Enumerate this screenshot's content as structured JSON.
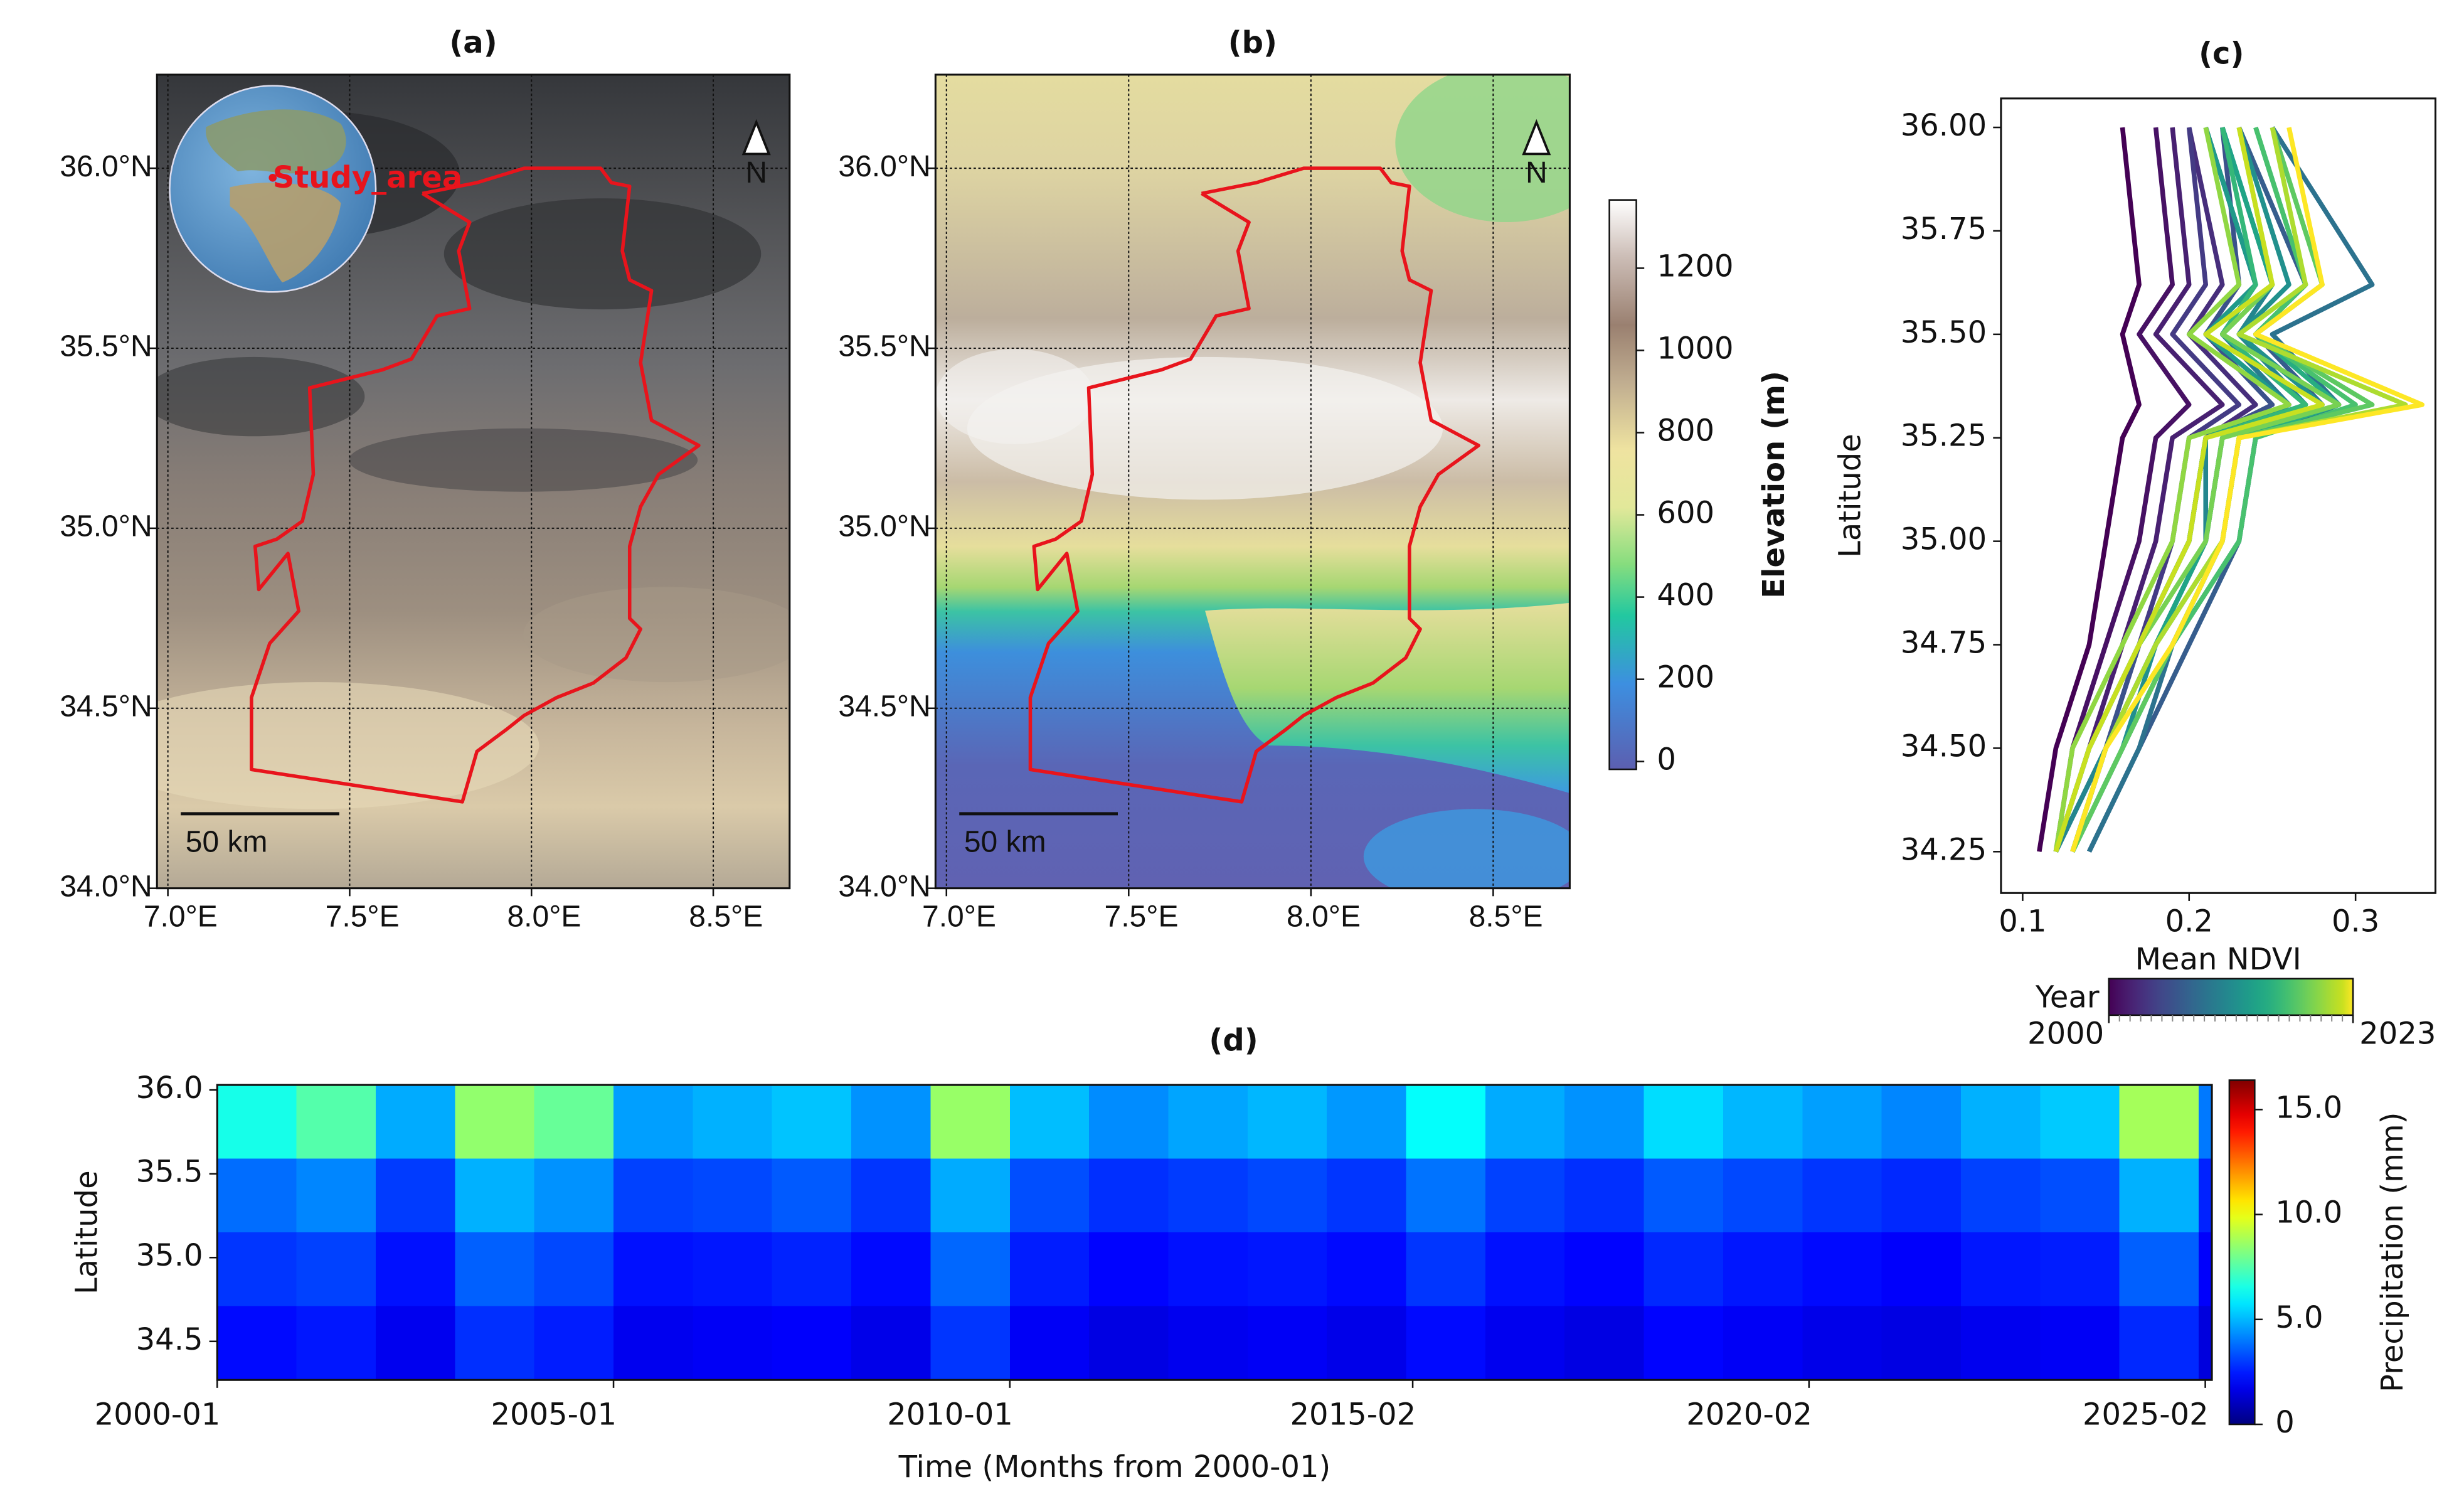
{
  "chart_data": [
    {
      "type": "map",
      "title": "(a)",
      "xlim": [
        6.97,
        8.71
      ],
      "ylim": [
        34.0,
        36.26
      ],
      "xticks": [
        {
          "value": 7.0,
          "label": "7.0°E"
        },
        {
          "value": 7.5,
          "label": "7.5°E"
        },
        {
          "value": 8.0,
          "label": "8.0°E"
        },
        {
          "value": 8.5,
          "label": "8.5°E"
        }
      ],
      "yticks": [
        {
          "value": 34.0,
          "label": "34.0°N"
        },
        {
          "value": 34.5,
          "label": "34.5°N"
        },
        {
          "value": 35.0,
          "label": "35.0°N"
        },
        {
          "value": 35.5,
          "label": "35.5°N"
        },
        {
          "value": 36.0,
          "label": "36.0°N"
        }
      ],
      "boundary": {
        "lon": [
          7.7,
          7.85,
          7.98,
          8.19,
          8.22,
          8.27,
          8.25,
          8.27,
          8.33,
          8.3,
          8.33,
          8.46,
          8.35,
          8.3,
          8.27,
          8.27,
          8.3,
          8.26,
          8.17,
          8.07,
          7.98,
          7.93,
          7.85,
          7.81,
          7.23,
          7.23,
          7.28,
          7.36,
          7.33,
          7.25,
          7.24,
          7.3,
          7.37,
          7.4,
          7.39,
          7.59,
          7.67,
          7.74,
          7.83,
          7.8,
          7.83,
          7.7
        ],
        "lat": [
          35.93,
          35.96,
          36.0,
          36.0,
          35.96,
          35.95,
          35.77,
          35.69,
          35.66,
          35.46,
          35.3,
          35.23,
          35.15,
          35.06,
          34.95,
          34.75,
          34.72,
          34.64,
          34.57,
          34.53,
          34.48,
          34.44,
          34.38,
          34.24,
          34.33,
          34.53,
          34.68,
          34.77,
          34.93,
          34.83,
          34.95,
          34.97,
          35.02,
          35.15,
          35.39,
          35.44,
          35.47,
          35.59,
          35.61,
          35.77,
          35.85,
          35.93
        ]
      },
      "boundary_color": "#e8141c",
      "scale_label": "50 km",
      "north_label": "N",
      "inset_label": "Study_area"
    },
    {
      "type": "map",
      "title": "(b)",
      "xlim": [
        6.97,
        8.71
      ],
      "ylim": [
        34.0,
        36.26
      ],
      "xticks": [
        {
          "value": 7.0,
          "label": "7.0°E"
        },
        {
          "value": 7.5,
          "label": "7.5°E"
        },
        {
          "value": 8.0,
          "label": "8.0°E"
        },
        {
          "value": 8.5,
          "label": "8.5°E"
        }
      ],
      "yticks": [
        {
          "value": 34.0,
          "label": "34.0°N"
        },
        {
          "value": 34.5,
          "label": "34.5°N"
        },
        {
          "value": 35.0,
          "label": "35.0°N"
        },
        {
          "value": 35.5,
          "label": "35.5°N"
        },
        {
          "value": 36.0,
          "label": "36.0°N"
        }
      ],
      "boundary": {
        "lon": [
          7.7,
          7.85,
          7.98,
          8.19,
          8.22,
          8.27,
          8.25,
          8.27,
          8.33,
          8.3,
          8.33,
          8.46,
          8.35,
          8.3,
          8.27,
          8.27,
          8.3,
          8.26,
          8.17,
          8.07,
          7.98,
          7.93,
          7.85,
          7.81,
          7.23,
          7.23,
          7.28,
          7.36,
          7.33,
          7.25,
          7.24,
          7.3,
          7.37,
          7.4,
          7.39,
          7.59,
          7.67,
          7.74,
          7.83,
          7.8,
          7.83,
          7.7
        ],
        "lat": [
          35.93,
          35.96,
          36.0,
          36.0,
          35.96,
          35.95,
          35.77,
          35.69,
          35.66,
          35.46,
          35.3,
          35.23,
          35.15,
          35.06,
          34.95,
          34.75,
          34.72,
          34.64,
          34.57,
          34.53,
          34.48,
          34.44,
          34.38,
          34.24,
          34.33,
          34.53,
          34.68,
          34.77,
          34.93,
          34.83,
          34.95,
          34.97,
          35.02,
          35.15,
          35.39,
          35.44,
          35.47,
          35.59,
          35.61,
          35.77,
          35.85,
          35.93
        ]
      },
      "boundary_color": "#e8141c",
      "scale_label": "50 km",
      "north_label": "N",
      "colorbar": {
        "label": "Elevation (m)",
        "lim": [
          -19,
          1366
        ],
        "ticks": [
          0,
          200,
          400,
          600,
          800,
          1000,
          1200
        ]
      }
    },
    {
      "type": "line",
      "title": "(c)",
      "xlabel": "Mean NDVI",
      "ylabel": "Latitude",
      "xlim": [
        0.087,
        0.348
      ],
      "ylim": [
        34.15,
        36.07
      ],
      "xticks": [
        0.1,
        0.2,
        0.3
      ],
      "yticks": [
        {
          "value": 34.25,
          "label": "34.25"
        },
        {
          "value": 34.5,
          "label": "34.50"
        },
        {
          "value": 34.75,
          "label": "34.75"
        },
        {
          "value": 35.0,
          "label": "35.00"
        },
        {
          "value": 35.25,
          "label": "35.25"
        },
        {
          "value": 35.5,
          "label": "35.50"
        },
        {
          "value": 35.75,
          "label": "35.75"
        },
        {
          "value": 36.0,
          "label": "36.00"
        }
      ],
      "y": [
        34.25,
        34.5,
        34.75,
        35.0,
        35.25,
        35.33,
        35.5,
        35.62,
        36.0
      ],
      "series": [
        {
          "color": "#440154",
          "values": [
            0.11,
            0.12,
            0.14,
            0.15,
            0.16,
            0.17,
            0.16,
            0.17,
            0.16
          ]
        },
        {
          "color": "#471164",
          "values": [
            0.12,
            0.13,
            0.15,
            0.17,
            0.18,
            0.2,
            0.17,
            0.19,
            0.18
          ]
        },
        {
          "color": "#482071",
          "values": [
            0.12,
            0.14,
            0.16,
            0.18,
            0.19,
            0.22,
            0.18,
            0.2,
            0.19
          ]
        },
        {
          "color": "#472e7c",
          "values": [
            0.13,
            0.15,
            0.17,
            0.2,
            0.21,
            0.24,
            0.2,
            0.22,
            0.2
          ]
        },
        {
          "color": "#443b84",
          "values": [
            0.12,
            0.14,
            0.17,
            0.19,
            0.2,
            0.23,
            0.19,
            0.21,
            0.2
          ]
        },
        {
          "color": "#404889",
          "values": [
            0.13,
            0.15,
            0.18,
            0.21,
            0.22,
            0.26,
            0.22,
            0.24,
            0.21
          ]
        },
        {
          "color": "#3b528b",
          "values": [
            0.12,
            0.15,
            0.17,
            0.2,
            0.21,
            0.25,
            0.21,
            0.23,
            0.22
          ]
        },
        {
          "color": "#365d8d",
          "values": [
            0.14,
            0.17,
            0.2,
            0.23,
            0.24,
            0.28,
            0.24,
            0.27,
            0.23
          ]
        },
        {
          "color": "#31688e",
          "values": [
            0.13,
            0.16,
            0.19,
            0.22,
            0.23,
            0.27,
            0.23,
            0.25,
            0.22
          ]
        },
        {
          "color": "#2c728e",
          "values": [
            0.14,
            0.17,
            0.19,
            0.23,
            0.24,
            0.29,
            0.25,
            0.31,
            0.25
          ]
        },
        {
          "color": "#287c8e",
          "values": [
            0.13,
            0.15,
            0.18,
            0.21,
            0.22,
            0.26,
            0.22,
            0.24,
            0.21
          ]
        },
        {
          "color": "#24868e",
          "values": [
            0.12,
            0.15,
            0.18,
            0.21,
            0.21,
            0.27,
            0.23,
            0.25,
            0.22
          ]
        },
        {
          "color": "#21908d",
          "values": [
            0.13,
            0.16,
            0.18,
            0.22,
            0.23,
            0.28,
            0.23,
            0.26,
            0.23
          ]
        },
        {
          "color": "#1f9a8a",
          "values": [
            0.12,
            0.14,
            0.17,
            0.2,
            0.21,
            0.26,
            0.21,
            0.24,
            0.21
          ]
        },
        {
          "color": "#20a486",
          "values": [
            0.13,
            0.15,
            0.18,
            0.21,
            0.22,
            0.27,
            0.22,
            0.25,
            0.22
          ]
        },
        {
          "color": "#27ad81",
          "values": [
            0.13,
            0.16,
            0.19,
            0.22,
            0.23,
            0.29,
            0.24,
            0.27,
            0.24
          ]
        },
        {
          "color": "#35b779",
          "values": [
            0.12,
            0.14,
            0.17,
            0.2,
            0.21,
            0.27,
            0.22,
            0.24,
            0.22
          ]
        },
        {
          "color": "#48c16e",
          "values": [
            0.13,
            0.16,
            0.19,
            0.23,
            0.24,
            0.3,
            0.24,
            0.27,
            0.24
          ]
        },
        {
          "color": "#5ec962",
          "values": [
            0.13,
            0.16,
            0.19,
            0.22,
            0.23,
            0.31,
            0.24,
            0.28,
            0.25
          ]
        },
        {
          "color": "#77d153",
          "values": [
            0.12,
            0.14,
            0.17,
            0.21,
            0.22,
            0.29,
            0.22,
            0.25,
            0.23
          ]
        },
        {
          "color": "#90d743",
          "values": [
            0.12,
            0.13,
            0.16,
            0.19,
            0.2,
            0.26,
            0.2,
            0.23,
            0.21
          ]
        },
        {
          "color": "#addc30",
          "values": [
            0.13,
            0.15,
            0.18,
            0.22,
            0.23,
            0.33,
            0.23,
            0.27,
            0.25
          ]
        },
        {
          "color": "#c8e020",
          "values": [
            0.12,
            0.14,
            0.17,
            0.2,
            0.21,
            0.28,
            0.21,
            0.25,
            0.23
          ]
        },
        {
          "color": "#fde725",
          "values": [
            0.13,
            0.15,
            0.19,
            0.22,
            0.23,
            0.34,
            0.24,
            0.28,
            0.26
          ]
        }
      ],
      "colorbar": {
        "label": "Year",
        "lim": [
          2000,
          2023
        ],
        "ticks": [
          2000,
          2023
        ]
      }
    },
    {
      "type": "heatmap",
      "title": "(d)",
      "xlabel": "Time (Months from 2000-01)",
      "ylabel": "Latitude",
      "xlim": [
        0,
        302
      ],
      "ylim": [
        34.27,
        36.03
      ],
      "xticks": [
        {
          "value": 0,
          "label": "2000-01"
        },
        {
          "value": 60,
          "label": "2005-01"
        },
        {
          "value": 120,
          "label": "2010-01"
        },
        {
          "value": 181,
          "label": "2015-02"
        },
        {
          "value": 241,
          "label": "2020-02"
        },
        {
          "value": 301,
          "label": "2025-02"
        }
      ],
      "yticks": [
        {
          "value": 34.5,
          "label": "34.5"
        },
        {
          "value": 35.0,
          "label": "35.0"
        },
        {
          "value": 35.5,
          "label": "35.5"
        },
        {
          "value": 36.0,
          "label": "36.0"
        }
      ],
      "x_bins": [
        0,
        12,
        24,
        36,
        48,
        60,
        72,
        84,
        96,
        108,
        120,
        132,
        144,
        156,
        168,
        180,
        192,
        204,
        216,
        228,
        240,
        252,
        264,
        276,
        288,
        300,
        302
      ],
      "y_bins": [
        36.03,
        35.59,
        35.15,
        34.71,
        34.27
      ],
      "z": [
        [
          6.5,
          7.5,
          4.8,
          8.5,
          7.8,
          4.6,
          4.9,
          5.2,
          4.4,
          8.6,
          5.1,
          4.3,
          4.7,
          5.0,
          4.5,
          6.2,
          4.8,
          4.4,
          5.6,
          5.0,
          4.6,
          4.2,
          4.9,
          5.3,
          8.8,
          4.0
        ],
        [
          3.8,
          4.2,
          3.0,
          4.9,
          4.4,
          3.1,
          3.2,
          3.5,
          2.9,
          4.8,
          3.3,
          2.8,
          3.0,
          3.2,
          2.9,
          3.9,
          3.1,
          2.8,
          3.5,
          3.2,
          2.9,
          2.7,
          3.1,
          3.3,
          4.9,
          2.6
        ],
        [
          2.9,
          3.1,
          2.3,
          3.6,
          3.2,
          2.3,
          2.4,
          2.6,
          2.2,
          3.7,
          2.5,
          2.1,
          2.3,
          2.4,
          2.2,
          2.9,
          2.3,
          2.1,
          2.7,
          2.4,
          2.2,
          2.0,
          2.4,
          2.5,
          3.6,
          2.0
        ],
        [
          2.2,
          2.4,
          1.8,
          2.8,
          2.5,
          1.8,
          1.9,
          2.0,
          1.7,
          2.9,
          1.9,
          1.6,
          1.8,
          1.9,
          1.7,
          2.2,
          1.8,
          1.6,
          2.1,
          1.9,
          1.7,
          1.6,
          1.8,
          1.9,
          2.7,
          1.5
        ]
      ],
      "colormap": "jet",
      "colorbar": {
        "label": "Precipitation (mm)",
        "lim": [
          0,
          16.4
        ],
        "ticks": [
          0,
          {
            "value": 5,
            "label": "5.0"
          },
          {
            "value": 10,
            "label": "10.0"
          },
          {
            "value": 15,
            "label": "15.0"
          }
        ]
      }
    }
  ]
}
